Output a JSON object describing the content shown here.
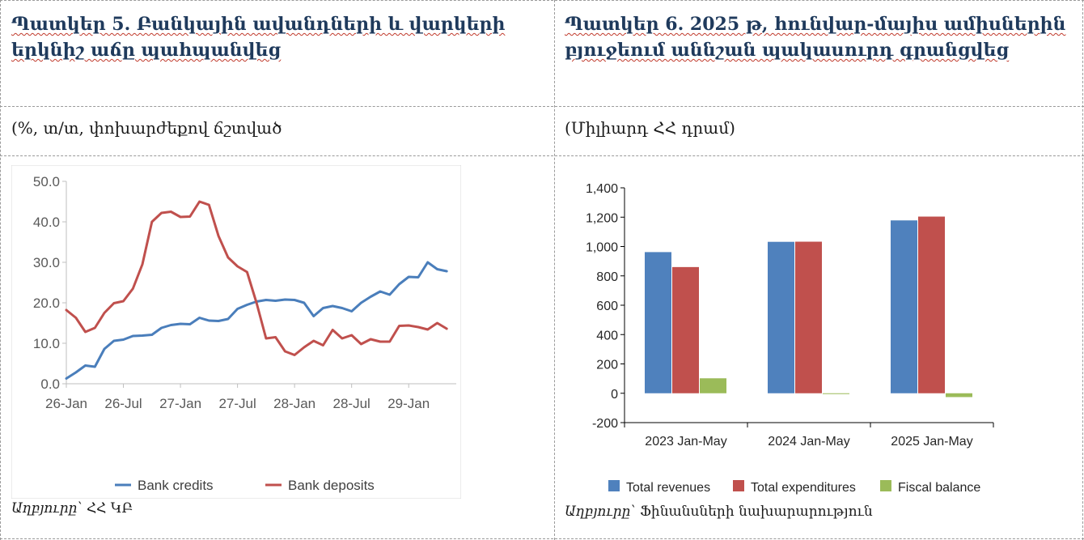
{
  "table": {
    "left": {
      "title": "Պատկեր 5.  Բանկային ավանդների և վարկերի երկնիշ աճը պահպանվեց",
      "unit": "(%, տ/տ, փոխարժեքով ճշտված",
      "source_label": "Աղբյուրը՝",
      "source_value": " ՀՀ ԿԲ"
    },
    "right": {
      "title": "Պատկեր 6. 2025 թ, հունվար-մայիս ամիսներին բյուջեում աննշան պակասուրդ գրանցվեց",
      "unit": "(Միլիարդ ՀՀ դրամ)",
      "source_label": "Աղբյուրը՝",
      "source_value": " Ֆինանսների նախարարություն"
    }
  },
  "chart_data": [
    {
      "type": "line",
      "y_ticks": [
        "0.0",
        "10.0",
        "20.0",
        "30.0",
        "40.0",
        "50.0"
      ],
      "ylim": [
        0,
        50
      ],
      "x_ticks": [
        "26-Jan",
        "26-Jul",
        "27-Jan",
        "27-Jul",
        "28-Jan",
        "28-Jul",
        "29-Jan"
      ],
      "x_range_months": [
        0,
        41
      ],
      "legend_position": "bottom",
      "series": [
        {
          "name": "Bank credits",
          "color": "#4a7ebb",
          "points": [
            [
              0,
              1.3
            ],
            [
              1,
              2.8
            ],
            [
              2,
              4.5
            ],
            [
              3,
              4.2
            ],
            [
              4,
              8.6
            ],
            [
              5,
              10.6
            ],
            [
              6,
              10.9
            ],
            [
              7,
              11.8
            ],
            [
              8,
              11.9
            ],
            [
              9,
              12.1
            ],
            [
              10,
              13.8
            ],
            [
              11,
              14.5
            ],
            [
              12,
              14.8
            ],
            [
              13,
              14.7
            ],
            [
              14,
              16.3
            ],
            [
              15,
              15.6
            ],
            [
              16,
              15.5
            ],
            [
              17,
              16.0
            ],
            [
              18,
              18.5
            ],
            [
              19,
              19.5
            ],
            [
              20,
              20.3
            ],
            [
              21,
              20.7
            ],
            [
              22,
              20.5
            ],
            [
              23,
              20.8
            ],
            [
              24,
              20.7
            ],
            [
              25,
              20.0
            ],
            [
              26,
              16.7
            ],
            [
              27,
              18.7
            ],
            [
              28,
              19.2
            ],
            [
              29,
              18.7
            ],
            [
              30,
              17.9
            ],
            [
              31,
              20.0
            ],
            [
              32,
              21.5
            ],
            [
              33,
              22.8
            ],
            [
              34,
              22.0
            ],
            [
              35,
              24.6
            ],
            [
              36,
              26.4
            ],
            [
              37,
              26.3
            ],
            [
              38,
              30.0
            ],
            [
              39,
              28.3
            ],
            [
              40,
              27.8
            ]
          ]
        },
        {
          "name": "Bank deposits",
          "color": "#c0504d",
          "points": [
            [
              0,
              18.2
            ],
            [
              1,
              16.3
            ],
            [
              2,
              12.8
            ],
            [
              3,
              13.8
            ],
            [
              4,
              17.5
            ],
            [
              5,
              19.9
            ],
            [
              6,
              20.4
            ],
            [
              7,
              23.5
            ],
            [
              8,
              29.5
            ],
            [
              9,
              40.0
            ],
            [
              10,
              42.2
            ],
            [
              11,
              42.5
            ],
            [
              12,
              41.2
            ],
            [
              13,
              41.3
            ],
            [
              14,
              45.0
            ],
            [
              15,
              44.2
            ],
            [
              16,
              36.5
            ],
            [
              17,
              31.2
            ],
            [
              18,
              29.0
            ],
            [
              19,
              27.6
            ],
            [
              20,
              20.0
            ],
            [
              21,
              11.2
            ],
            [
              22,
              11.5
            ],
            [
              23,
              8.0
            ],
            [
              24,
              7.1
            ],
            [
              25,
              9.0
            ],
            [
              26,
              10.6
            ],
            [
              27,
              9.5
            ],
            [
              28,
              13.3
            ],
            [
              29,
              11.2
            ],
            [
              30,
              12.0
            ],
            [
              31,
              9.8
            ],
            [
              32,
              11.0
            ],
            [
              33,
              10.4
            ],
            [
              34,
              10.4
            ],
            [
              35,
              14.3
            ],
            [
              36,
              14.4
            ],
            [
              37,
              14.0
            ],
            [
              38,
              13.4
            ],
            [
              39,
              15.0
            ],
            [
              40,
              13.6
            ]
          ]
        }
      ]
    },
    {
      "type": "bar",
      "categories": [
        "2023 Jan-May",
        "2024 Jan-May",
        "2025 Jan-May"
      ],
      "y_ticks": [
        "-200",
        "0",
        "200",
        "400",
        "600",
        "800",
        "1,000",
        "1,200",
        "1,400"
      ],
      "ylim": [
        -200,
        1400
      ],
      "legend_position": "bottom",
      "series": [
        {
          "name": "Total revenues",
          "color": "#4f81bd",
          "values": [
            962,
            1032,
            1178
          ]
        },
        {
          "name": "Total expenditures",
          "color": "#c0504d",
          "values": [
            860,
            1033,
            1204
          ]
        },
        {
          "name": "Fiscal balance",
          "color": "#9bbb59",
          "values": [
            102,
            -1,
            -26
          ]
        }
      ]
    }
  ]
}
